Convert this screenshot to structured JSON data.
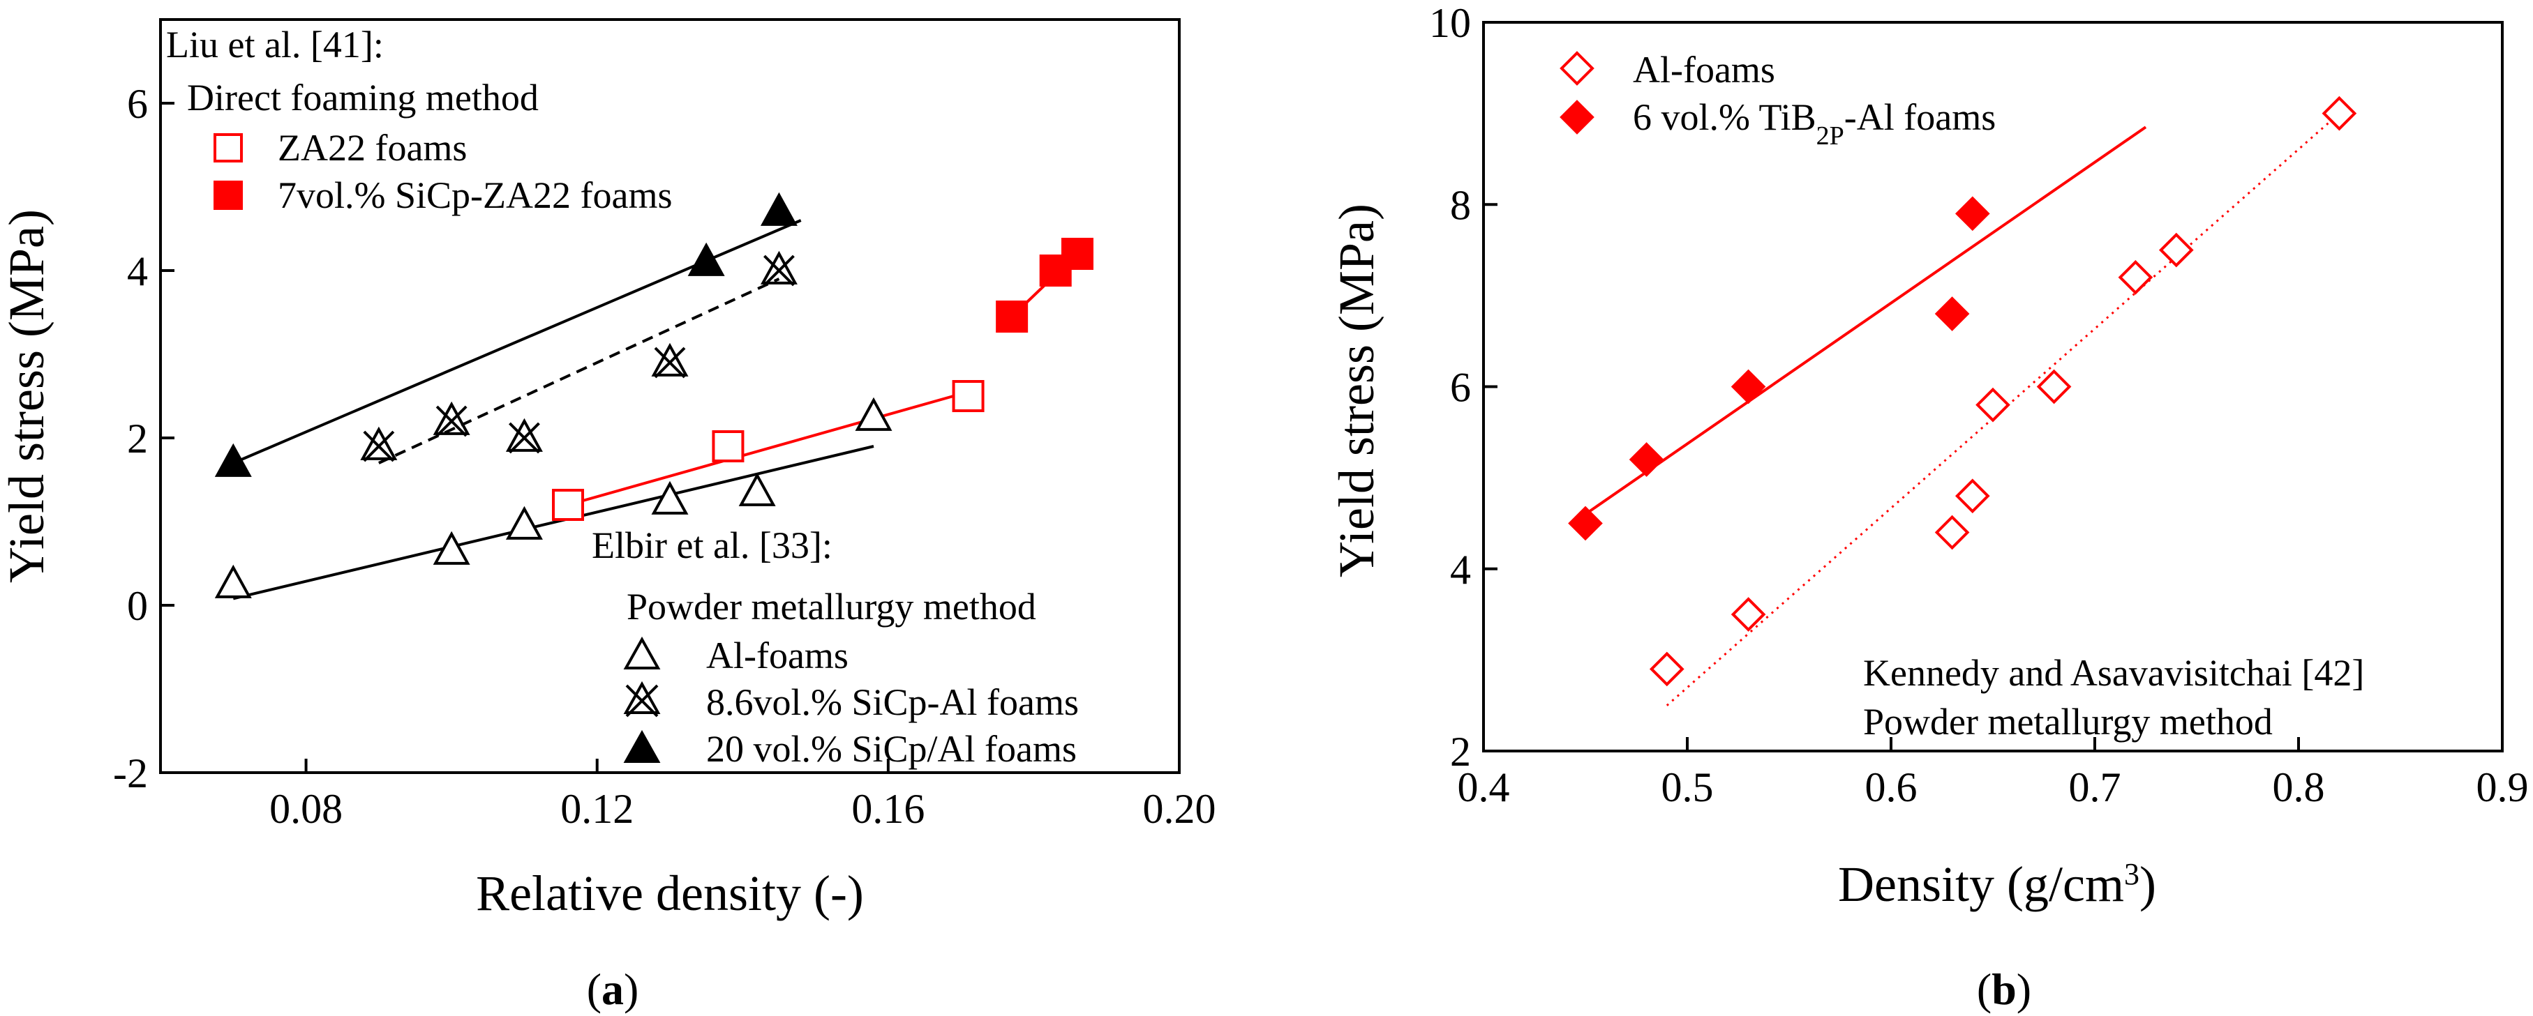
{
  "chart_data": [
    {
      "type": "scatter",
      "panel": "(a)",
      "xlabel": "Relative density (-)",
      "ylabel": "Yield stress (MPa)",
      "xlim": [
        0.06,
        0.2
      ],
      "ylim": [
        -2,
        7
      ],
      "xticks": [
        "0.08",
        "0.12",
        "0.16",
        "0.20"
      ],
      "xtick_values": [
        0.08,
        0.12,
        0.16,
        0.2
      ],
      "yticks": [
        "-2",
        "0",
        "2",
        "4",
        "6"
      ],
      "ytick_values": [
        -2,
        0,
        2,
        4,
        6
      ],
      "legend_groups": [
        {
          "title": "Liu et al. [41]:",
          "subtitle": "Direct foaming method"
        },
        {
          "title": "Elbir et al. [33]:",
          "subtitle": "Powder metallurgy method"
        }
      ],
      "series": [
        {
          "name": "ZA22 foams",
          "marker": "open-square",
          "color": "#ff0000",
          "x": [
            0.116,
            0.138,
            0.171
          ],
          "y": [
            1.2,
            1.9,
            2.5
          ],
          "fit": [
            [
              0.116,
              1.2
            ],
            [
              0.171,
              2.55
            ]
          ]
        },
        {
          "name": "7vol.% SiCp-ZA22 foams",
          "marker": "filled-square",
          "color": "#ff0000",
          "x": [
            0.177,
            0.183,
            0.186
          ],
          "y": [
            3.45,
            4.0,
            4.2
          ],
          "fit": [
            [
              0.177,
              3.45
            ],
            [
              0.186,
              4.2
            ]
          ]
        },
        {
          "name": "Al-foams",
          "marker": "open-triangle",
          "color": "#000000",
          "x": [
            0.07,
            0.1,
            0.11,
            0.13,
            0.142,
            0.158
          ],
          "y": [
            0.25,
            0.65,
            0.95,
            1.25,
            1.35,
            2.25
          ],
          "fit": [
            [
              0.07,
              0.08
            ],
            [
              0.158,
              1.9
            ]
          ]
        },
        {
          "name": "8.6vol.% SiCp-Al foams",
          "marker": "star-x",
          "color": "#000000",
          "x": [
            0.09,
            0.1,
            0.11,
            0.13,
            0.145
          ],
          "y": [
            1.9,
            2.2,
            2.0,
            2.9,
            4.0
          ],
          "fit": [
            [
              0.09,
              1.7
            ],
            [
              0.145,
              3.9
            ]
          ]
        },
        {
          "name": "20 vol.% SiCp/Al foams",
          "marker": "filled-triangle",
          "color": "#000000",
          "x": [
            0.07,
            0.135,
            0.145
          ],
          "y": [
            1.7,
            4.1,
            4.7
          ],
          "fit": [
            [
              0.07,
              1.7
            ],
            [
              0.148,
              4.6
            ]
          ]
        }
      ]
    },
    {
      "type": "scatter",
      "panel": "(b)",
      "xlabel": "Density (g/cm3)",
      "ylabel": "Yield stress (MPa)",
      "xlim": [
        0.4,
        0.9
      ],
      "ylim": [
        2,
        10
      ],
      "xticks": [
        "0.4",
        "0.5",
        "0.6",
        "0.7",
        "0.8",
        "0.9"
      ],
      "xtick_values": [
        0.4,
        0.5,
        0.6,
        0.7,
        0.8,
        0.9
      ],
      "yticks": [
        "2",
        "4",
        "6",
        "8",
        "10"
      ],
      "ytick_values": [
        2,
        4,
        6,
        8,
        10
      ],
      "annotations": [
        "Kennedy and Asavavisitchai [42]",
        "Powder metallurgy method"
      ],
      "series": [
        {
          "name": "Al-foams",
          "marker": "open-diamond",
          "color": "#ff0000",
          "x": [
            0.49,
            0.53,
            0.63,
            0.64,
            0.65,
            0.68,
            0.72,
            0.74,
            0.82
          ],
          "y": [
            2.9,
            3.5,
            4.4,
            4.8,
            5.8,
            6.0,
            7.2,
            7.5,
            9.0
          ],
          "fit": [
            [
              0.49,
              2.5
            ],
            [
              0.82,
              9.0
            ]
          ],
          "fit_style": "dotted"
        },
        {
          "name": "6 vol.% TiB2P-Al foams",
          "marker": "filled-diamond",
          "color": "#ff0000",
          "x": [
            0.45,
            0.48,
            0.53,
            0.63,
            0.64
          ],
          "y": [
            4.5,
            5.2,
            6.0,
            6.8,
            7.9
          ],
          "fit": [
            [
              0.45,
              4.6
            ],
            [
              0.725,
              8.85
            ]
          ],
          "fit_style": "solid"
        }
      ]
    }
  ]
}
